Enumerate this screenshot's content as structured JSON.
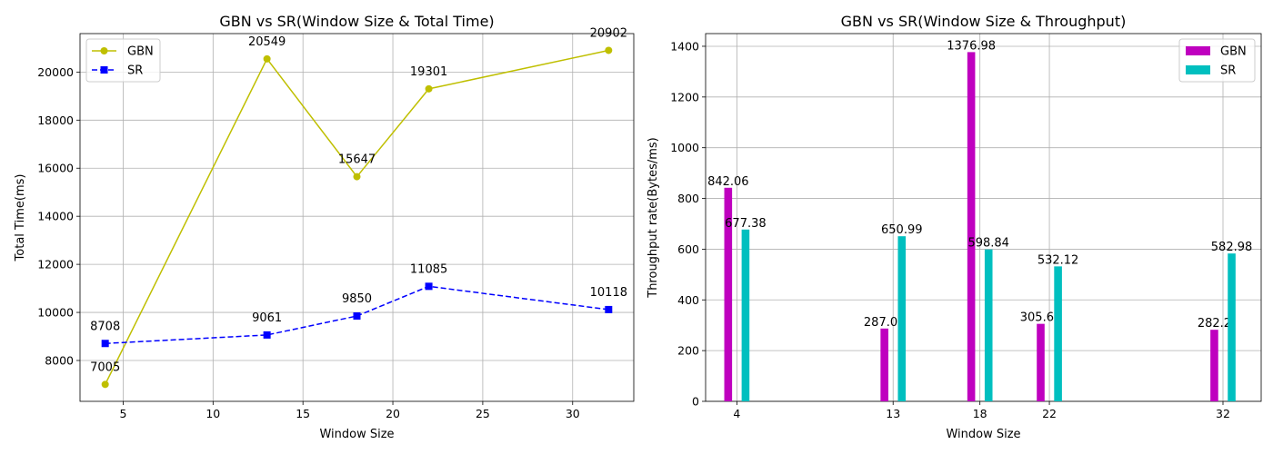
{
  "chart_data": [
    {
      "type": "line",
      "title": "GBN vs SR(Window Size & Total Time)",
      "xlabel": "Window Size",
      "ylabel": "Total Time(ms)",
      "xlim": [
        2.6,
        33.4
      ],
      "ylim": [
        6300,
        21600
      ],
      "xticks": [
        5,
        10,
        15,
        20,
        25,
        30
      ],
      "yticks": [
        8000,
        10000,
        12000,
        14000,
        16000,
        18000,
        20000
      ],
      "grid": true,
      "legend": "top-left",
      "x": [
        4,
        13,
        18,
        22,
        32
      ],
      "series": [
        {
          "name": "GBN",
          "color": "#bfbf00",
          "marker": "circle",
          "linestyle": "solid",
          "values": [
            7005,
            20549,
            15647,
            19301,
            20902
          ],
          "labels": [
            "7005",
            "20549",
            "15647",
            "19301",
            "20902"
          ]
        },
        {
          "name": "SR",
          "color": "#0000ff",
          "marker": "square",
          "linestyle": "dashed",
          "values": [
            8708,
            9061,
            9850,
            11085,
            10118
          ],
          "labels": [
            "8708",
            "9061",
            "9850",
            "11085",
            "10118"
          ]
        }
      ]
    },
    {
      "type": "bar",
      "title": "GBN vs SR(Window Size & Throughput)",
      "xlabel": "Window Size",
      "ylabel": "Throughput rate(Bytes/ms)",
      "xlim": [
        2.2,
        34.2
      ],
      "ylim": [
        0,
        1450
      ],
      "yticks": [
        0,
        200,
        400,
        600,
        800,
        1000,
        1200,
        1400
      ],
      "grid": true,
      "legend": "top-right",
      "categories": [
        "4",
        "13",
        "18",
        "22",
        "32"
      ],
      "x": [
        4,
        13,
        18,
        22,
        32
      ],
      "series": [
        {
          "name": "GBN",
          "color": "#bf00bf",
          "values": [
            842.06,
            287.05,
            1376.98,
            305.61,
            282.2
          ],
          "labels": [
            "842.06",
            "287.05",
            "1376.98",
            "305.61",
            "282.2"
          ]
        },
        {
          "name": "SR",
          "color": "#00bfbf",
          "values": [
            677.38,
            650.99,
            598.84,
            532.12,
            582.98
          ],
          "labels": [
            "677.38",
            "650.99",
            "598.84",
            "532.12",
            "582.98"
          ]
        }
      ]
    }
  ]
}
